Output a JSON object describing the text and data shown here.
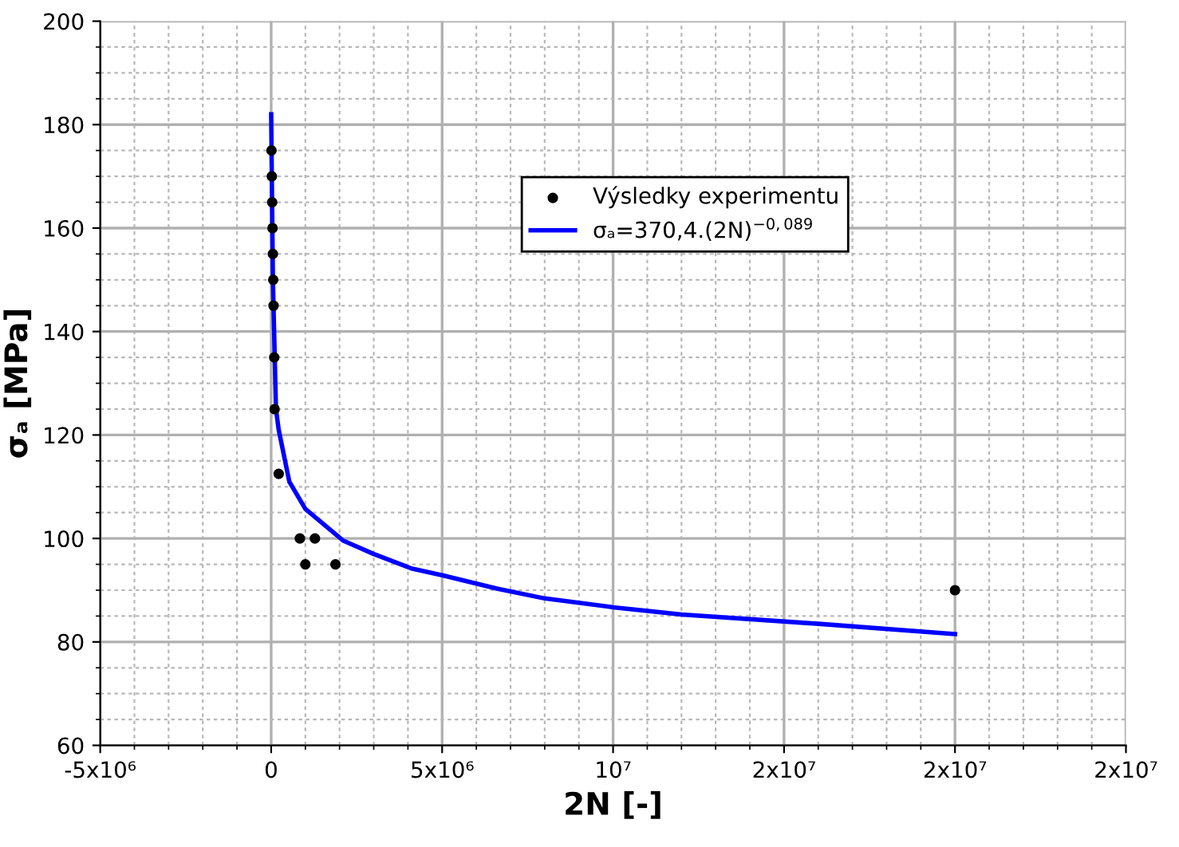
{
  "chart_data": {
    "type": "scatter",
    "xlabel": "2N [-]",
    "ylabel": "σₐ [MPa]",
    "xlim": [
      -5000000,
      25000000
    ],
    "xticks": [
      {
        "value": -5000000,
        "label": "-5x10⁶"
      },
      0,
      {
        "value": 5000000,
        "label": "5x10⁶"
      },
      {
        "value": 10000000,
        "label": "10⁷"
      },
      {
        "value": 15000000,
        "label": "2x10⁷"
      },
      {
        "value": 20000000,
        "label": "2x10⁷"
      },
      {
        "value": 25000000,
        "label": "2x10⁷"
      }
    ],
    "ylim": [
      60,
      200
    ],
    "yticks": [
      60,
      80,
      100,
      120,
      140,
      160,
      180,
      200
    ],
    "grid": true,
    "legend": "top right",
    "series": [
      {
        "name": "Výsledky experimentu",
        "color": "#000000",
        "marker": "circle",
        "x": [
          10000,
          20000,
          30000,
          40000,
          50000,
          60000,
          70000,
          90000,
          100000,
          220000,
          840000,
          1000000,
          1280000,
          1880000,
          20000000
        ],
        "values": [
          175,
          170,
          165,
          160,
          155,
          150,
          145,
          135,
          125,
          112.5,
          100,
          95,
          100,
          95,
          90
        ]
      },
      {
        "name": "σₐ=370,4.(2N)$^{−0,089}$",
        "type": "line",
        "color": "#0000ff",
        "marker": "none",
        "line_style": "solid",
        "x": [
          0,
          50000,
          140000,
          220000,
          530000,
          1000000,
          2100000,
          3000000,
          4100000,
          5000000,
          6600000,
          8000000,
          10000000,
          12000000,
          16000000,
          20000000
        ],
        "values": [
          182,
          150,
          125,
          121,
          111,
          105.7,
          99.6,
          97,
          94.2,
          92.9,
          90.3,
          88.4,
          86.7,
          85.3,
          83.5,
          81.5
        ]
      }
    ]
  }
}
